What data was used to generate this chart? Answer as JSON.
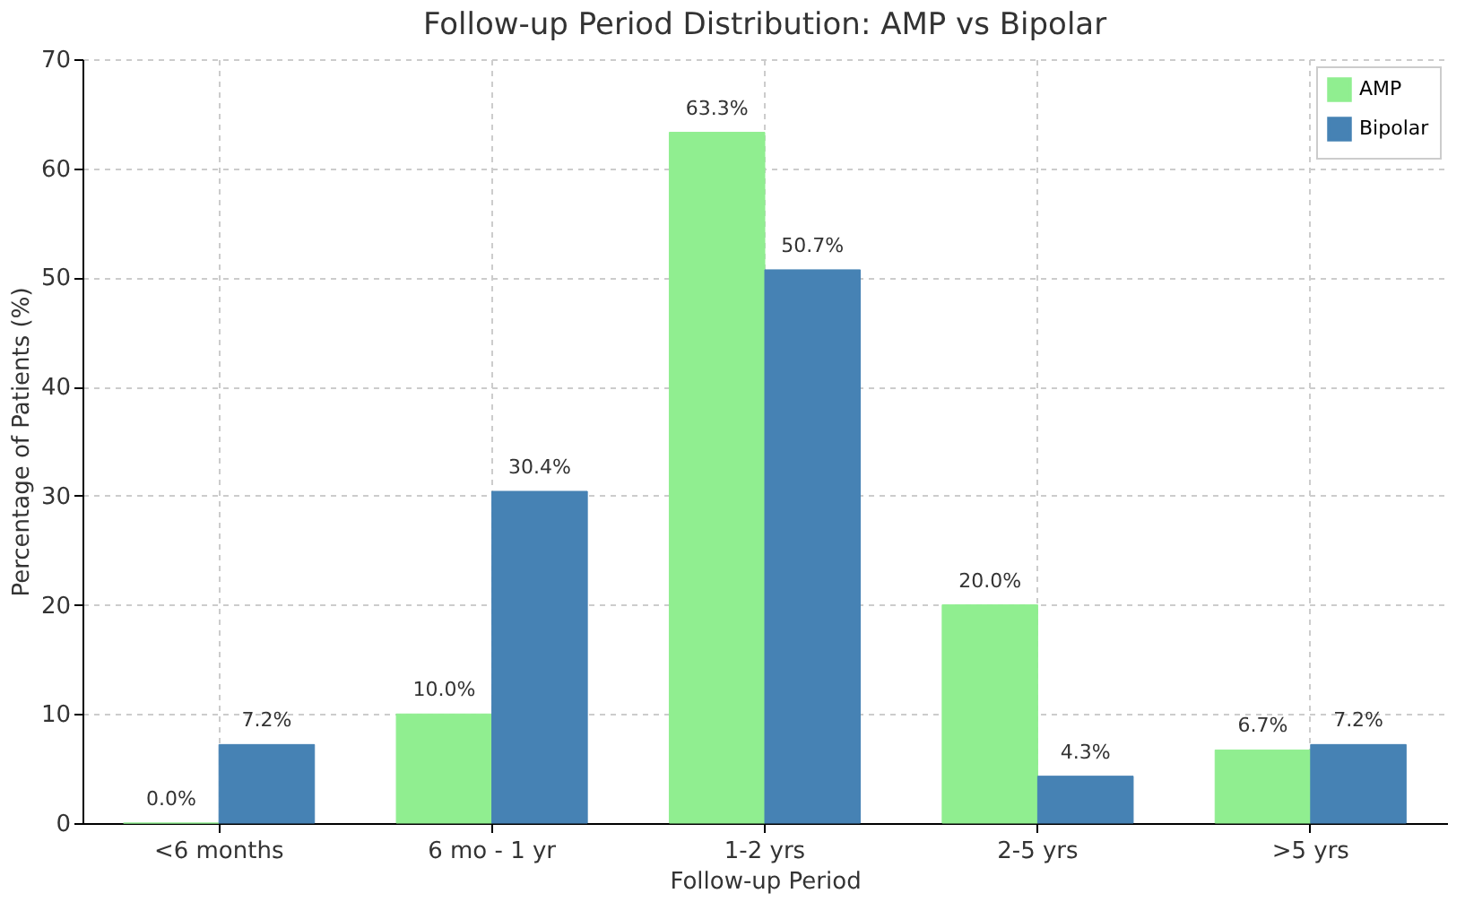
{
  "chart_data": {
    "type": "bar",
    "title": "Follow-up Period Distribution: AMP vs Bipolar",
    "xlabel": "Follow-up Period",
    "ylabel": "Percentage of Patients (%)",
    "categories": [
      "<6 months",
      "6 mo - 1 yr",
      "1-2 yrs",
      "2-5 yrs",
      ">5 yrs"
    ],
    "series": [
      {
        "name": "AMP",
        "color": "#90ee90",
        "values": [
          0.0,
          10.0,
          63.3,
          20.0,
          6.7
        ],
        "value_labels": [
          "0.0%",
          "10.0%",
          "63.3%",
          "20.0%",
          "6.7%"
        ]
      },
      {
        "name": "Bipolar",
        "color": "#4682b4",
        "values": [
          7.2,
          30.4,
          50.7,
          4.3,
          7.2
        ],
        "value_labels": [
          "7.2%",
          "30.4%",
          "50.7%",
          "4.3%",
          "7.2%"
        ]
      }
    ],
    "ylim": [
      0,
      70
    ],
    "yticks": [
      0,
      10,
      20,
      30,
      40,
      50,
      60,
      70
    ],
    "grid": true,
    "legend": "top right"
  }
}
